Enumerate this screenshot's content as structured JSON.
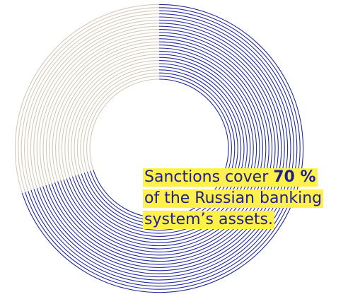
{
  "chart_data": {
    "type": "pie",
    "style": "donut",
    "series": [
      {
        "value": 70,
        "color": "#232b9b"
      },
      {
        "value": 30,
        "color": "#d7c8b6"
      }
    ],
    "start_position": "top",
    "direction": "clockwise"
  },
  "caption": {
    "line1_pre": "Sanctions cover ",
    "line1_bold": "70 %",
    "line2": "of the Russian banking",
    "line3": "system’s assets.",
    "highlight_color": "#fff04a"
  }
}
